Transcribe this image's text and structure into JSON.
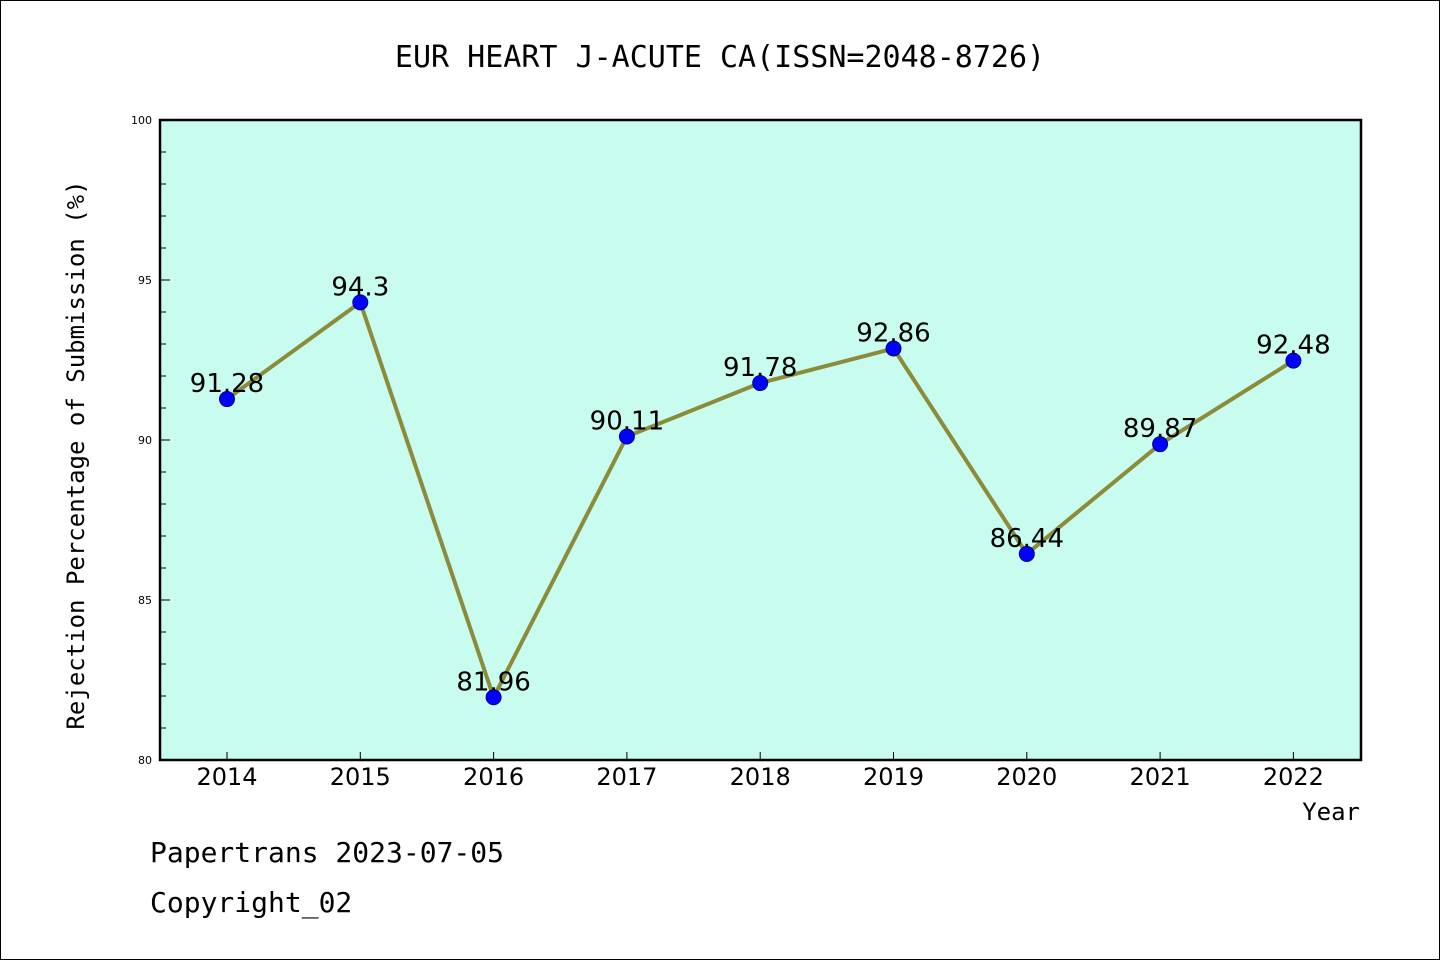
{
  "chart_data": {
    "type": "line",
    "title": "EUR HEART J-ACUTE CA(ISSN=2048-8726)",
    "xlabel": "Year",
    "ylabel": "Rejection Percentage of Submission (%)",
    "categories": [
      "2014",
      "2015",
      "2016",
      "2017",
      "2018",
      "2019",
      "2020",
      "2021",
      "2022"
    ],
    "values": [
      91.28,
      94.3,
      81.96,
      90.11,
      91.78,
      92.86,
      86.44,
      89.87,
      92.48
    ],
    "data_labels": [
      "91.28",
      "94.3",
      "81.96",
      "90.11",
      "91.78",
      "92.86",
      "86.44",
      "89.87",
      "92.48"
    ],
    "ylim": [
      80,
      100
    ],
    "yticks": [
      "80",
      "85",
      "90",
      "95",
      "100"
    ],
    "grid": false,
    "colors": {
      "plot_background": "#c8fcee",
      "line": "#8b8b3a",
      "marker": "#0000ff",
      "marker_edge": "#00008b"
    }
  },
  "footer": {
    "line1": "Papertrans 2023-07-05",
    "line2": "Copyright_02"
  }
}
